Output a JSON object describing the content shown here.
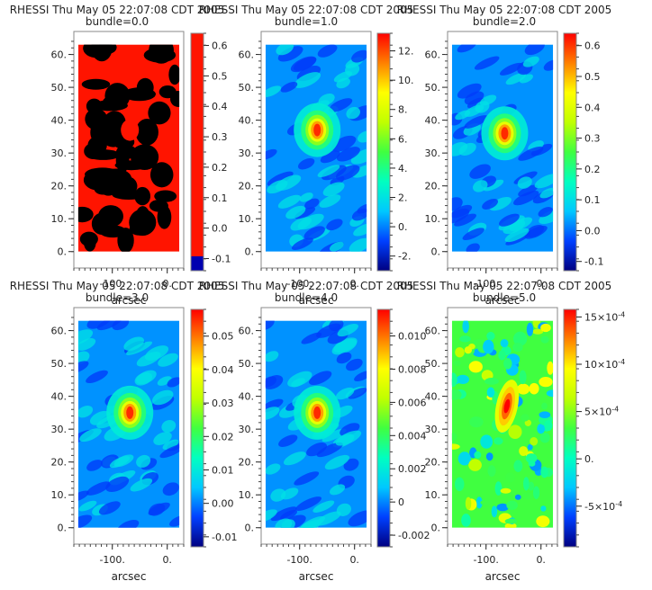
{
  "chart_data": {
    "type": "heatmap",
    "shared": {
      "title": "RHESSI Thu May 05 22:07:08 CDT 2005",
      "xlabel": "arcsec",
      "xlim": [
        -170,
        30
      ],
      "ylim": [
        -5,
        67
      ],
      "x_ticks": [
        {
          "v": -100,
          "label": "-100."
        },
        {
          "v": 0,
          "label": "0."
        }
      ],
      "y_ticks": [
        {
          "v": 0,
          "label": "0."
        },
        {
          "v": 10,
          "label": "10."
        },
        {
          "v": 20,
          "label": "20."
        },
        {
          "v": 30,
          "label": "30."
        },
        {
          "v": 40,
          "label": "40."
        },
        {
          "v": 50,
          "label": "50."
        },
        {
          "v": 60,
          "label": "60."
        }
      ],
      "image_extent": {
        "x": [
          -162,
          22
        ],
        "y": [
          0,
          63
        ]
      },
      "colormap": [
        "#000080",
        "#0040ff",
        "#00c8ff",
        "#00ffc0",
        "#40ff40",
        "#c0ff00",
        "#ffff00",
        "#ff8000",
        "#ff0000"
      ]
    },
    "panels": [
      {
        "subtitle": "bundle=0.0",
        "style": "binary",
        "colors": [
          "#000000",
          "#ff1400"
        ],
        "source": {
          "x": -68,
          "y": 37
        },
        "clim": [
          -0.14,
          0.64
        ],
        "colorbar_ticks": [
          {
            "v": -0.1,
            "label": "-0.1"
          },
          {
            "v": 0.0,
            "label": "0.0"
          },
          {
            "v": 0.1,
            "label": "0.1"
          },
          {
            "v": 0.2,
            "label": "0.2"
          },
          {
            "v": 0.3,
            "label": "0.3"
          },
          {
            "v": 0.4,
            "label": "0.4"
          },
          {
            "v": 0.5,
            "label": "0.5"
          },
          {
            "v": 0.6,
            "label": "0.6"
          }
        ]
      },
      {
        "subtitle": "bundle=1.0",
        "style": "map",
        "source": {
          "x": -68,
          "y": 37
        },
        "clim": [
          -3.0,
          13.2
        ],
        "colorbar_ticks": [
          {
            "v": -2,
            "label": "-2."
          },
          {
            "v": 0,
            "label": "0."
          },
          {
            "v": 2,
            "label": "2."
          },
          {
            "v": 4,
            "label": "4."
          },
          {
            "v": 6,
            "label": "6."
          },
          {
            "v": 8,
            "label": "8."
          },
          {
            "v": 10,
            "label": "10."
          },
          {
            "v": 12,
            "label": "12."
          }
        ]
      },
      {
        "subtitle": "bundle=2.0",
        "style": "map",
        "source": {
          "x": -66,
          "y": 36
        },
        "clim": [
          -0.13,
          0.64
        ],
        "colorbar_ticks": [
          {
            "v": -0.1,
            "label": "-0.1"
          },
          {
            "v": 0.0,
            "label": "0.0"
          },
          {
            "v": 0.1,
            "label": "0.1"
          },
          {
            "v": 0.2,
            "label": "0.2"
          },
          {
            "v": 0.3,
            "label": "0.3"
          },
          {
            "v": 0.4,
            "label": "0.4"
          },
          {
            "v": 0.5,
            "label": "0.5"
          },
          {
            "v": 0.6,
            "label": "0.6"
          }
        ]
      },
      {
        "subtitle": "bundle=3.0",
        "style": "map",
        "source": {
          "x": -68,
          "y": 35
        },
        "clim": [
          -0.013,
          0.058
        ],
        "colorbar_ticks": [
          {
            "v": -0.01,
            "label": "-0.01"
          },
          {
            "v": 0.0,
            "label": "0.00"
          },
          {
            "v": 0.01,
            "label": "0.01"
          },
          {
            "v": 0.02,
            "label": "0.02"
          },
          {
            "v": 0.03,
            "label": "0.03"
          },
          {
            "v": 0.04,
            "label": "0.04"
          },
          {
            "v": 0.05,
            "label": "0.05"
          }
        ]
      },
      {
        "subtitle": "bundle=4.0",
        "style": "map",
        "source": {
          "x": -68,
          "y": 35
        },
        "clim": [
          -0.0027,
          0.0116
        ],
        "colorbar_ticks": [
          {
            "v": -0.002,
            "label": "-0.002"
          },
          {
            "v": 0.0,
            "label": "0"
          },
          {
            "v": 0.002,
            "label": "0.002"
          },
          {
            "v": 0.004,
            "label": "0.004"
          },
          {
            "v": 0.006,
            "label": "0.006"
          },
          {
            "v": 0.008,
            "label": "0.008"
          },
          {
            "v": 0.01,
            "label": "0.010"
          }
        ]
      },
      {
        "subtitle": "bundle=5.0",
        "style": "noisy",
        "source": {
          "x": -62,
          "y": 37
        },
        "clim": [
          -0.00093,
          0.00158
        ],
        "colorbar_ticks": [
          {
            "v": -0.0005,
            "label": "-5×10",
            "exp": "-4"
          },
          {
            "v": 0.0,
            "label": "0."
          },
          {
            "v": 0.0005,
            "label": "5×10",
            "exp": "-4"
          },
          {
            "v": 0.001,
            "label": "10×10",
            "exp": "-4"
          },
          {
            "v": 0.0015,
            "label": "15×10",
            "exp": "-4"
          }
        ]
      }
    ]
  }
}
